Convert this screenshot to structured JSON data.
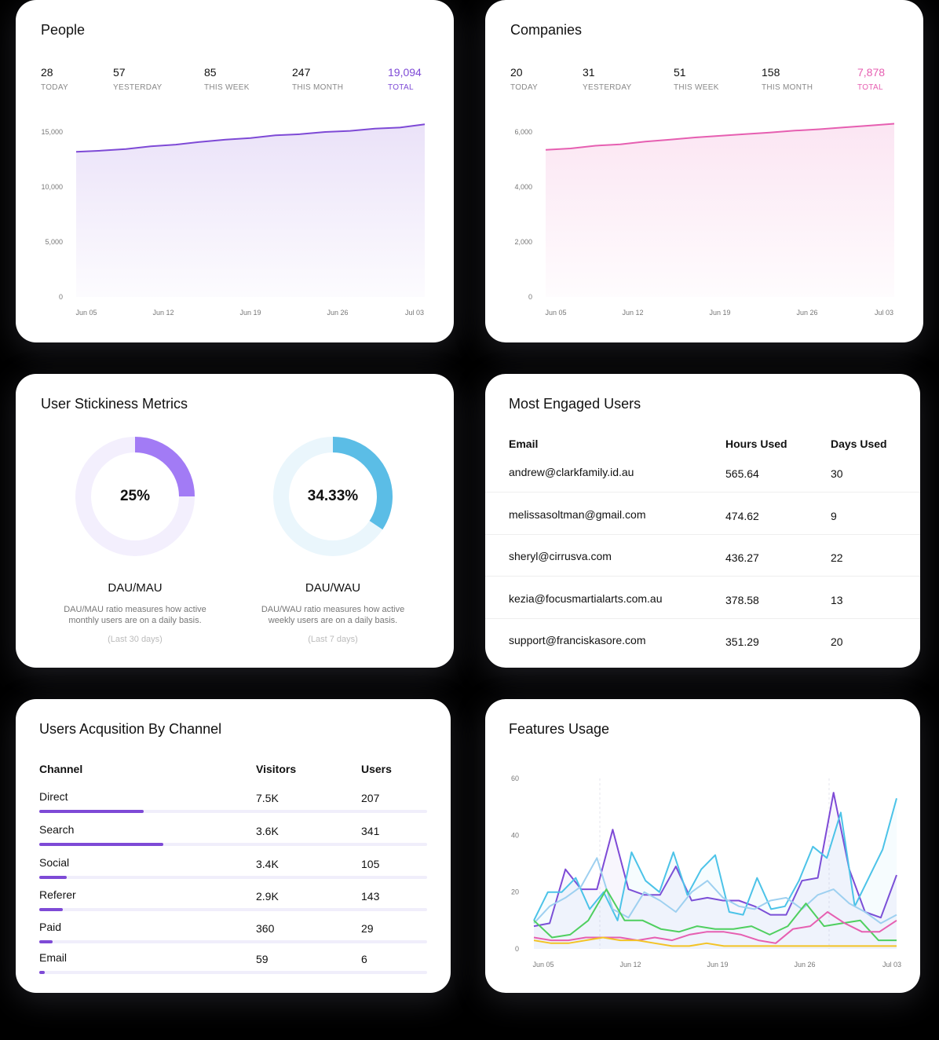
{
  "people": {
    "title": "People",
    "stats": [
      {
        "value": "28",
        "label": "TODAY"
      },
      {
        "value": "57",
        "label": "YESTERDAY"
      },
      {
        "value": "85",
        "label": "THIS WEEK"
      },
      {
        "value": "247",
        "label": "THIS MONTH"
      },
      {
        "value": "19,094",
        "label": "TOTAL"
      }
    ],
    "accent": "#7e4ad6"
  },
  "companies": {
    "title": "Companies",
    "stats": [
      {
        "value": "20",
        "label": "TODAY"
      },
      {
        "value": "31",
        "label": "YESTERDAY"
      },
      {
        "value": "51",
        "label": "THIS WEEK"
      },
      {
        "value": "158",
        "label": "THIS MONTH"
      },
      {
        "value": "7,878",
        "label": "TOTAL"
      }
    ],
    "accent": "#e65fb1"
  },
  "stickiness": {
    "title": "User Stickiness Metrics",
    "metrics": [
      {
        "value": "25%",
        "title": "DAU/MAU",
        "desc1": "DAU/MAU ratio measures how active",
        "desc2": "monthly users are on a daily basis.",
        "period": "(Last 30 days)",
        "fraction": 0.25,
        "color": "#a27bf5",
        "track": "#f3effd"
      },
      {
        "value": "34.33%",
        "title": "DAU/WAU",
        "desc1": "DAU/WAU ratio measures how active",
        "desc2": "weekly users are on a daily basis.",
        "period": "(Last 7 days)",
        "fraction": 0.3433,
        "color": "#5bbde6",
        "track": "#eaf6fc"
      }
    ]
  },
  "engaged": {
    "title": "Most Engaged Users",
    "headers": [
      "Email",
      "Hours Used",
      "Days Used"
    ],
    "rows": [
      {
        "email": "andrew@clarkfamily.id.au",
        "hours": "565.64",
        "days": "30"
      },
      {
        "email": "melissasoltman@gmail.com",
        "hours": "474.62",
        "days": "9"
      },
      {
        "email": "sheryl@cirrusva.com",
        "hours": "436.27",
        "days": "22"
      },
      {
        "email": "kezia@focusmartialarts.com.au",
        "hours": "378.58",
        "days": "13"
      },
      {
        "email": "support@franciskasore.com",
        "hours": "351.29",
        "days": "20"
      }
    ]
  },
  "acquisition": {
    "title": "Users Acqusition By Channel",
    "headers": [
      "Channel",
      "Visitors",
      "Users"
    ],
    "rows": [
      {
        "channel": "Direct",
        "visitors": "7.5K",
        "users": "207",
        "share": 0.27
      },
      {
        "channel": "Search",
        "visitors": "3.6K",
        "users": "341",
        "share": 0.32
      },
      {
        "channel": "Social",
        "visitors": "3.4K",
        "users": "105",
        "share": 0.07
      },
      {
        "channel": "Referer",
        "visitors": "2.9K",
        "users": "143",
        "share": 0.06
      },
      {
        "channel": "Paid",
        "visitors": "360",
        "users": "29",
        "share": 0.035
      },
      {
        "channel": "Email",
        "visitors": "59",
        "users": "6",
        "share": 0.015
      }
    ]
  },
  "features": {
    "title": "Features Usage"
  },
  "chart_data": [
    {
      "type": "area",
      "x": [
        "Jun 05",
        "Jun 07",
        "Jun 09",
        "Jun 11",
        "Jun 13",
        "Jun 15",
        "Jun 17",
        "Jun 19",
        "Jun 21",
        "Jun 23",
        "Jun 25",
        "Jun 27",
        "Jun 29",
        "Jul 01",
        "Jul 03"
      ],
      "xticks": [
        "Jun 05",
        "Jun 12",
        "Jun 19",
        "Jun 26",
        "Jul 03"
      ],
      "series": [
        {
          "values": [
            13200,
            13300,
            13450,
            13700,
            13850,
            14100,
            14300,
            14450,
            14700,
            14800,
            15000,
            15100,
            15300,
            15400,
            15700
          ]
        }
      ],
      "yticks": [
        "15,000",
        "10,000",
        "5,000",
        "0"
      ],
      "ylim": [
        0,
        15700
      ],
      "color": "#7e4ad6"
    },
    {
      "type": "area",
      "x": [
        "Jun 05",
        "Jun 07",
        "Jun 09",
        "Jun 11",
        "Jun 13",
        "Jun 15",
        "Jun 17",
        "Jun 19",
        "Jun 21",
        "Jun 23",
        "Jun 25",
        "Jun 27",
        "Jun 29",
        "Jul 01",
        "Jul 03"
      ],
      "xticks": [
        "Jun 05",
        "Jun 12",
        "Jun 19",
        "Jun 26",
        "Jul 03"
      ],
      "series": [
        {
          "values": [
            5350,
            5400,
            5500,
            5550,
            5650,
            5720,
            5800,
            5860,
            5920,
            5980,
            6050,
            6100,
            6170,
            6230,
            6300
          ]
        }
      ],
      "yticks": [
        "6,000",
        "4,000",
        "2,000",
        "0"
      ],
      "ylim": [
        0,
        6300
      ],
      "color": "#e65fb1"
    },
    {
      "type": "line",
      "xticks": [
        "Jun 05",
        "Jun 12",
        "Jun 19",
        "Jun 26",
        "Jul 03"
      ],
      "yticks": [
        "60",
        "40",
        "20",
        "0"
      ],
      "ylim": [
        0,
        60
      ],
      "series": [
        {
          "color": "#7e4ad6",
          "values": [
            8,
            9,
            28,
            21,
            21,
            42,
            21,
            19,
            19,
            29,
            17,
            18,
            17,
            17,
            15,
            12,
            12,
            24,
            25,
            55,
            28,
            13,
            11,
            26
          ]
        },
        {
          "color": "#4cc3e8",
          "values": [
            10,
            20,
            20,
            25,
            14,
            20,
            10,
            34,
            24,
            20,
            34,
            19,
            28,
            33,
            13,
            12,
            25,
            14,
            15,
            24,
            36,
            32,
            48,
            15,
            25,
            35,
            53
          ]
        },
        {
          "color": "#9ed0f0",
          "values": [
            9,
            15,
            18,
            22,
            32,
            14,
            11,
            20,
            17,
            13,
            20,
            24,
            18,
            15,
            14,
            17,
            18,
            14,
            19,
            21,
            16,
            13,
            9,
            12
          ]
        },
        {
          "color": "#4fcf5f",
          "values": [
            10,
            4,
            5,
            10,
            21,
            10,
            10,
            7,
            6,
            8,
            7,
            7,
            8,
            5,
            8,
            16,
            8,
            9,
            10,
            3,
            3
          ]
        },
        {
          "color": "#e65fb1",
          "values": [
            4,
            3,
            3,
            4,
            4,
            4,
            3,
            4,
            3,
            5,
            6,
            6,
            5,
            3,
            2,
            7,
            8,
            13,
            9,
            6,
            6,
            10
          ]
        },
        {
          "color": "#f3c325",
          "values": [
            3,
            2,
            2,
            3,
            4,
            3,
            3,
            2,
            1,
            1,
            2,
            1,
            1,
            1,
            1,
            1,
            1,
            1,
            1,
            1,
            1,
            1
          ]
        }
      ]
    }
  ]
}
